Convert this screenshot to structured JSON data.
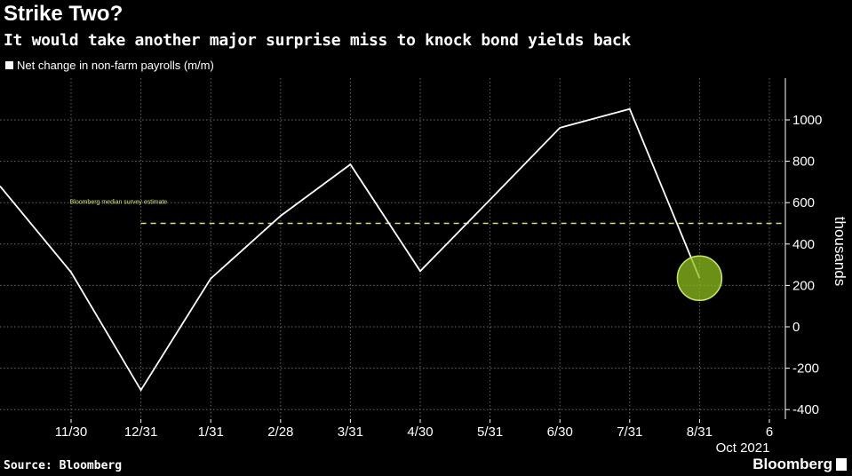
{
  "header": {
    "title": "Strike Two?",
    "subtitle": "It would take another major surprise miss to knock bond yields back"
  },
  "footer": {
    "source": "Source: Bloomberg",
    "brand": "Bloomberg"
  },
  "colors": {
    "background": "#000000",
    "line": "#ffffff",
    "estimate": "#d8e47a",
    "highlight": "#8fbf1f",
    "grid": "#6a6a6a"
  },
  "chart_data": {
    "type": "line",
    "title": "Strike Two?",
    "subtitle": "It would take another major surprise miss to knock bond yields back",
    "ylabel": "thousands",
    "ylim": [
      -400,
      1150
    ],
    "yticks": [
      -400,
      -200,
      0,
      200,
      400,
      600,
      800,
      1000
    ],
    "xticks": [
      "11/30",
      "12/31",
      "1/31",
      "2/28",
      "3/31",
      "4/30",
      "5/31",
      "6/30",
      "7/31",
      "8/31",
      "6"
    ],
    "xaxis_extra_label": "Oct 2021",
    "legend_position": "top-left",
    "grid": true,
    "series": [
      {
        "name": "Net change in non-farm payrolls (m/m)",
        "x": [
          "10/31",
          "11/30",
          "12/31",
          "1/31",
          "2/28",
          "3/31",
          "4/30",
          "5/31",
          "6/30",
          "7/31",
          "8/31"
        ],
        "values": [
          680,
          264,
          -306,
          233,
          536,
          785,
          269,
          614,
          962,
          1053,
          235
        ]
      }
    ],
    "reference_line": {
      "label": "Bloomberg median survey estimate",
      "value": 500,
      "start": "12/31",
      "end": "6"
    },
    "highlight_point": {
      "x": "8/31",
      "value": 235
    }
  }
}
